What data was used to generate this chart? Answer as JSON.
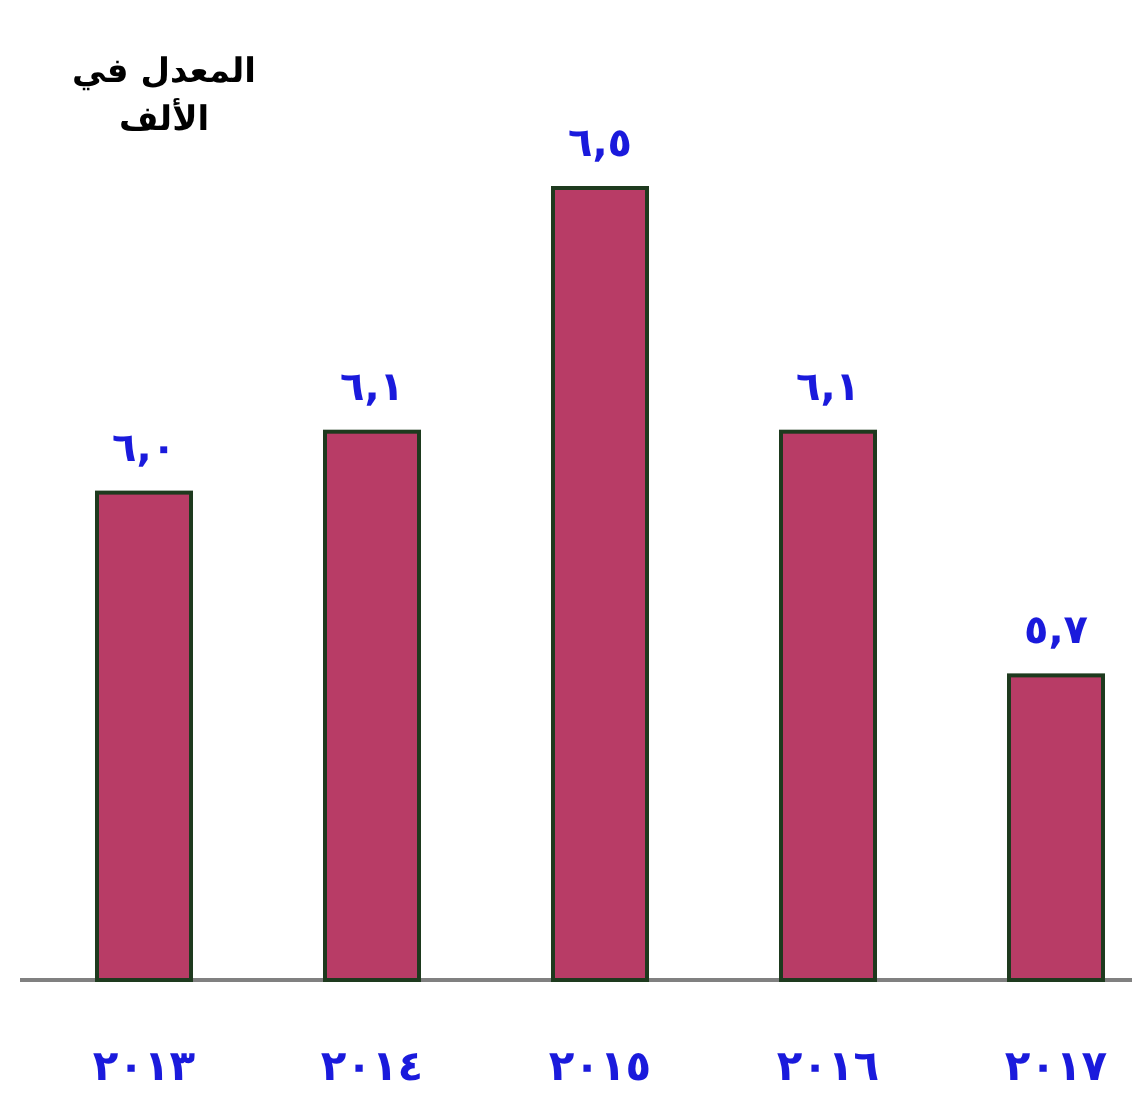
{
  "chart_data": {
    "type": "bar",
    "title": "المعدل في الألف",
    "categories": [
      "٢٠١٣",
      "٢٠١٤",
      "٢٠١٥",
      "٢٠١٦",
      "٢٠١٧"
    ],
    "values": [
      6.0,
      6.1,
      6.5,
      6.1,
      5.7
    ],
    "value_labels": [
      "٦,٠",
      "٦,١",
      "٦,٥",
      "٦,١",
      "٥,٧"
    ],
    "color": "#b83c66",
    "ylim": [
      5.2,
      6.5
    ],
    "tick_labels": "x"
  }
}
